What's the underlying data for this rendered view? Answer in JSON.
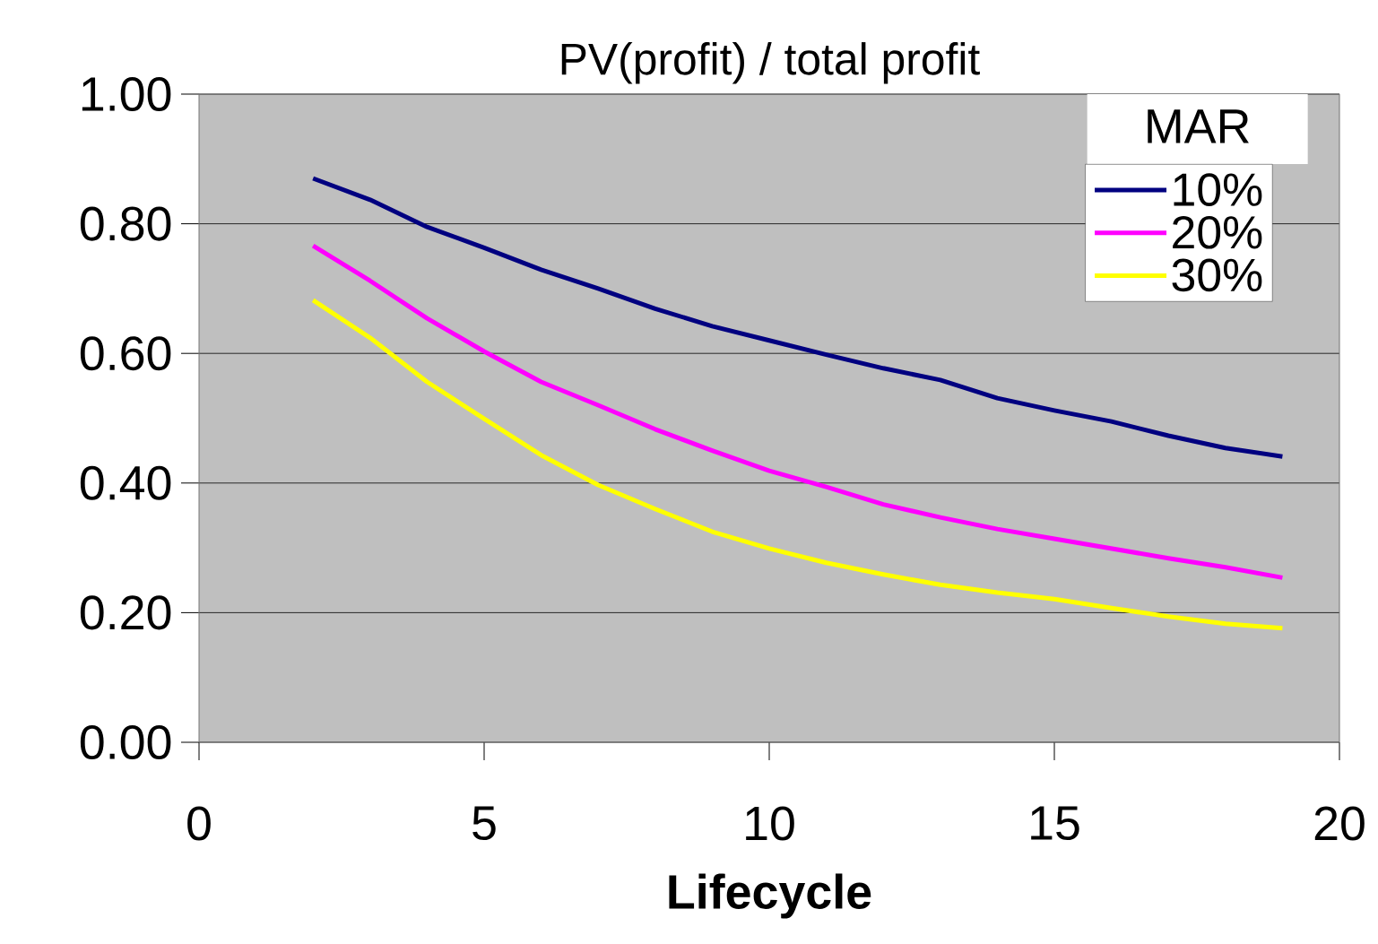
{
  "chart_data": {
    "type": "line",
    "title": "PV(profit) / total profit",
    "xlabel": "Lifecycle",
    "legend_title": "MAR",
    "legend": "top right",
    "grid": "y",
    "marker": "none",
    "line_style": "solid",
    "x": [
      2,
      3,
      4,
      5,
      6,
      7,
      8,
      9,
      10,
      11,
      12,
      13,
      14,
      15,
      16,
      17,
      18,
      19
    ],
    "series": [
      {
        "name": "10%",
        "color": "#000080",
        "values": [
          0.87,
          0.837,
          0.795,
          0.763,
          0.729,
          0.7,
          0.669,
          0.642,
          0.62,
          0.598,
          0.577,
          0.559,
          0.531,
          0.512,
          0.495,
          0.473,
          0.454,
          0.441
        ]
      },
      {
        "name": "20%",
        "color": "#ff00ff",
        "values": [
          0.766,
          0.712,
          0.654,
          0.603,
          0.556,
          0.52,
          0.483,
          0.45,
          0.419,
          0.394,
          0.367,
          0.347,
          0.329,
          0.314,
          0.299,
          0.284,
          0.27,
          0.254
        ]
      },
      {
        "name": "30%",
        "color": "#ffff00",
        "values": [
          0.682,
          0.624,
          0.556,
          0.499,
          0.443,
          0.397,
          0.36,
          0.325,
          0.299,
          0.277,
          0.259,
          0.243,
          0.231,
          0.221,
          0.207,
          0.194,
          0.183,
          0.176
        ]
      }
    ],
    "xlim": [
      0,
      20
    ],
    "xticks": [
      0,
      5,
      10,
      15,
      20
    ],
    "ylim": [
      0,
      1
    ],
    "yticks": [
      {
        "value": 0,
        "label": "0.00"
      },
      {
        "value": 0.2,
        "label": "0.20"
      },
      {
        "value": 0.4,
        "label": "0.40"
      },
      {
        "value": 0.6,
        "label": "0.60"
      },
      {
        "value": 0.8,
        "label": "0.80"
      },
      {
        "value": 1,
        "label": "1.00"
      }
    ]
  }
}
